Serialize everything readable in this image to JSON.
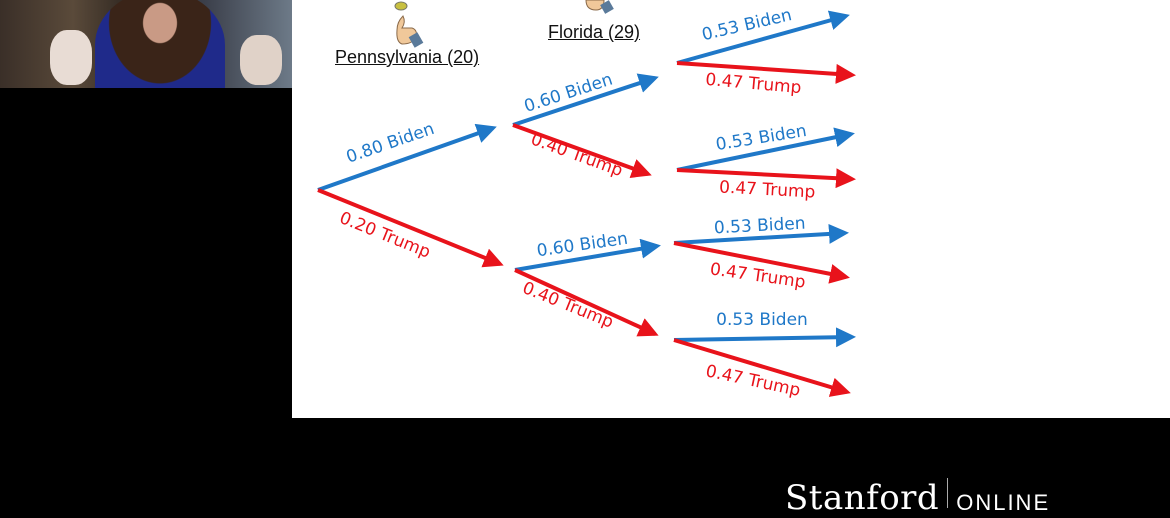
{
  "slide": {
    "states": [
      {
        "label": "Pennsylvania (20)"
      },
      {
        "label": "Florida (29)"
      }
    ],
    "tree": {
      "root": [
        {
          "label": "0.80 Biden",
          "party": "biden"
        },
        {
          "label": "0.20 Trump",
          "party": "trump"
        }
      ],
      "level2": [
        {
          "label": "0.60 Biden",
          "party": "biden"
        },
        {
          "label": "0.40 Trump",
          "party": "trump"
        },
        {
          "label": "0.60 Biden",
          "party": "biden"
        },
        {
          "label": "0.40 Trump",
          "party": "trump"
        }
      ],
      "level3": [
        {
          "label": "0.53 Biden",
          "party": "biden"
        },
        {
          "label": "0.47 Trump",
          "party": "trump"
        },
        {
          "label": "0.53 Biden",
          "party": "biden"
        },
        {
          "label": "0.47 Trump",
          "party": "trump"
        },
        {
          "label": "0.53 Biden",
          "party": "biden"
        },
        {
          "label": "0.47 Trump",
          "party": "trump"
        },
        {
          "label": "0.53 Biden",
          "party": "biden"
        },
        {
          "label": "0.47 Trump",
          "party": "trump"
        }
      ]
    },
    "colors": {
      "biden": "#1f78c8",
      "trump": "#e8131b"
    }
  },
  "branding": {
    "logo_main": "Stanford",
    "logo_sub": "ONLINE"
  }
}
